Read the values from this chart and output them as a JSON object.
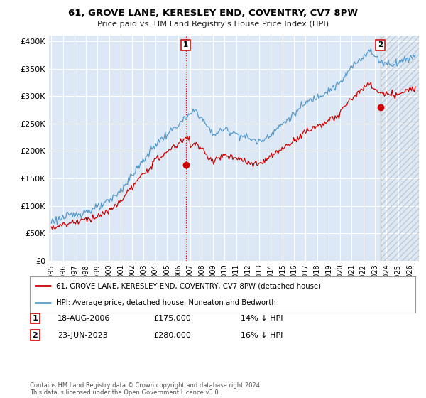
{
  "title": "61, GROVE LANE, KERESLEY END, COVENTRY, CV7 8PW",
  "subtitle": "Price paid vs. HM Land Registry's House Price Index (HPI)",
  "legend_line1": "61, GROVE LANE, KERESLEY END, COVENTRY, CV7 8PW (detached house)",
  "legend_line2": "HPI: Average price, detached house, Nuneaton and Bedworth",
  "sale1_label": "1",
  "sale1_date": "18-AUG-2006",
  "sale1_price": "£175,000",
  "sale1_hpi": "14% ↓ HPI",
  "sale1_x": 2006.63,
  "sale1_y": 175000,
  "sale2_label": "2",
  "sale2_date": "23-JUN-2023",
  "sale2_price": "£280,000",
  "sale2_hpi": "16% ↓ HPI",
  "sale2_x": 2023.47,
  "sale2_y": 280000,
  "ylim": [
    0,
    410000
  ],
  "xlim": [
    1994.8,
    2026.8
  ],
  "yticks": [
    0,
    50000,
    100000,
    150000,
    200000,
    250000,
    300000,
    350000,
    400000
  ],
  "ytick_labels": [
    "£0",
    "£50K",
    "£100K",
    "£150K",
    "£200K",
    "£250K",
    "£300K",
    "£350K",
    "£400K"
  ],
  "xticks": [
    1995,
    1996,
    1997,
    1998,
    1999,
    2000,
    2001,
    2002,
    2003,
    2004,
    2005,
    2006,
    2007,
    2008,
    2009,
    2010,
    2011,
    2012,
    2013,
    2014,
    2015,
    2016,
    2017,
    2018,
    2019,
    2020,
    2021,
    2022,
    2023,
    2024,
    2025,
    2026
  ],
  "bg_color": "#dce8f5",
  "plot_bg": "#dce8f5",
  "grid_color": "#ffffff",
  "red_color": "#cc0000",
  "blue_color": "#5599cc",
  "sale1_vline_color": "#cc0000",
  "sale1_vline_style": "dotted",
  "sale2_vline_color": "#aaaaaa",
  "sale2_vline_style": "dashed",
  "footnote": "Contains HM Land Registry data © Crown copyright and database right 2024.\nThis data is licensed under the Open Government Licence v3.0."
}
